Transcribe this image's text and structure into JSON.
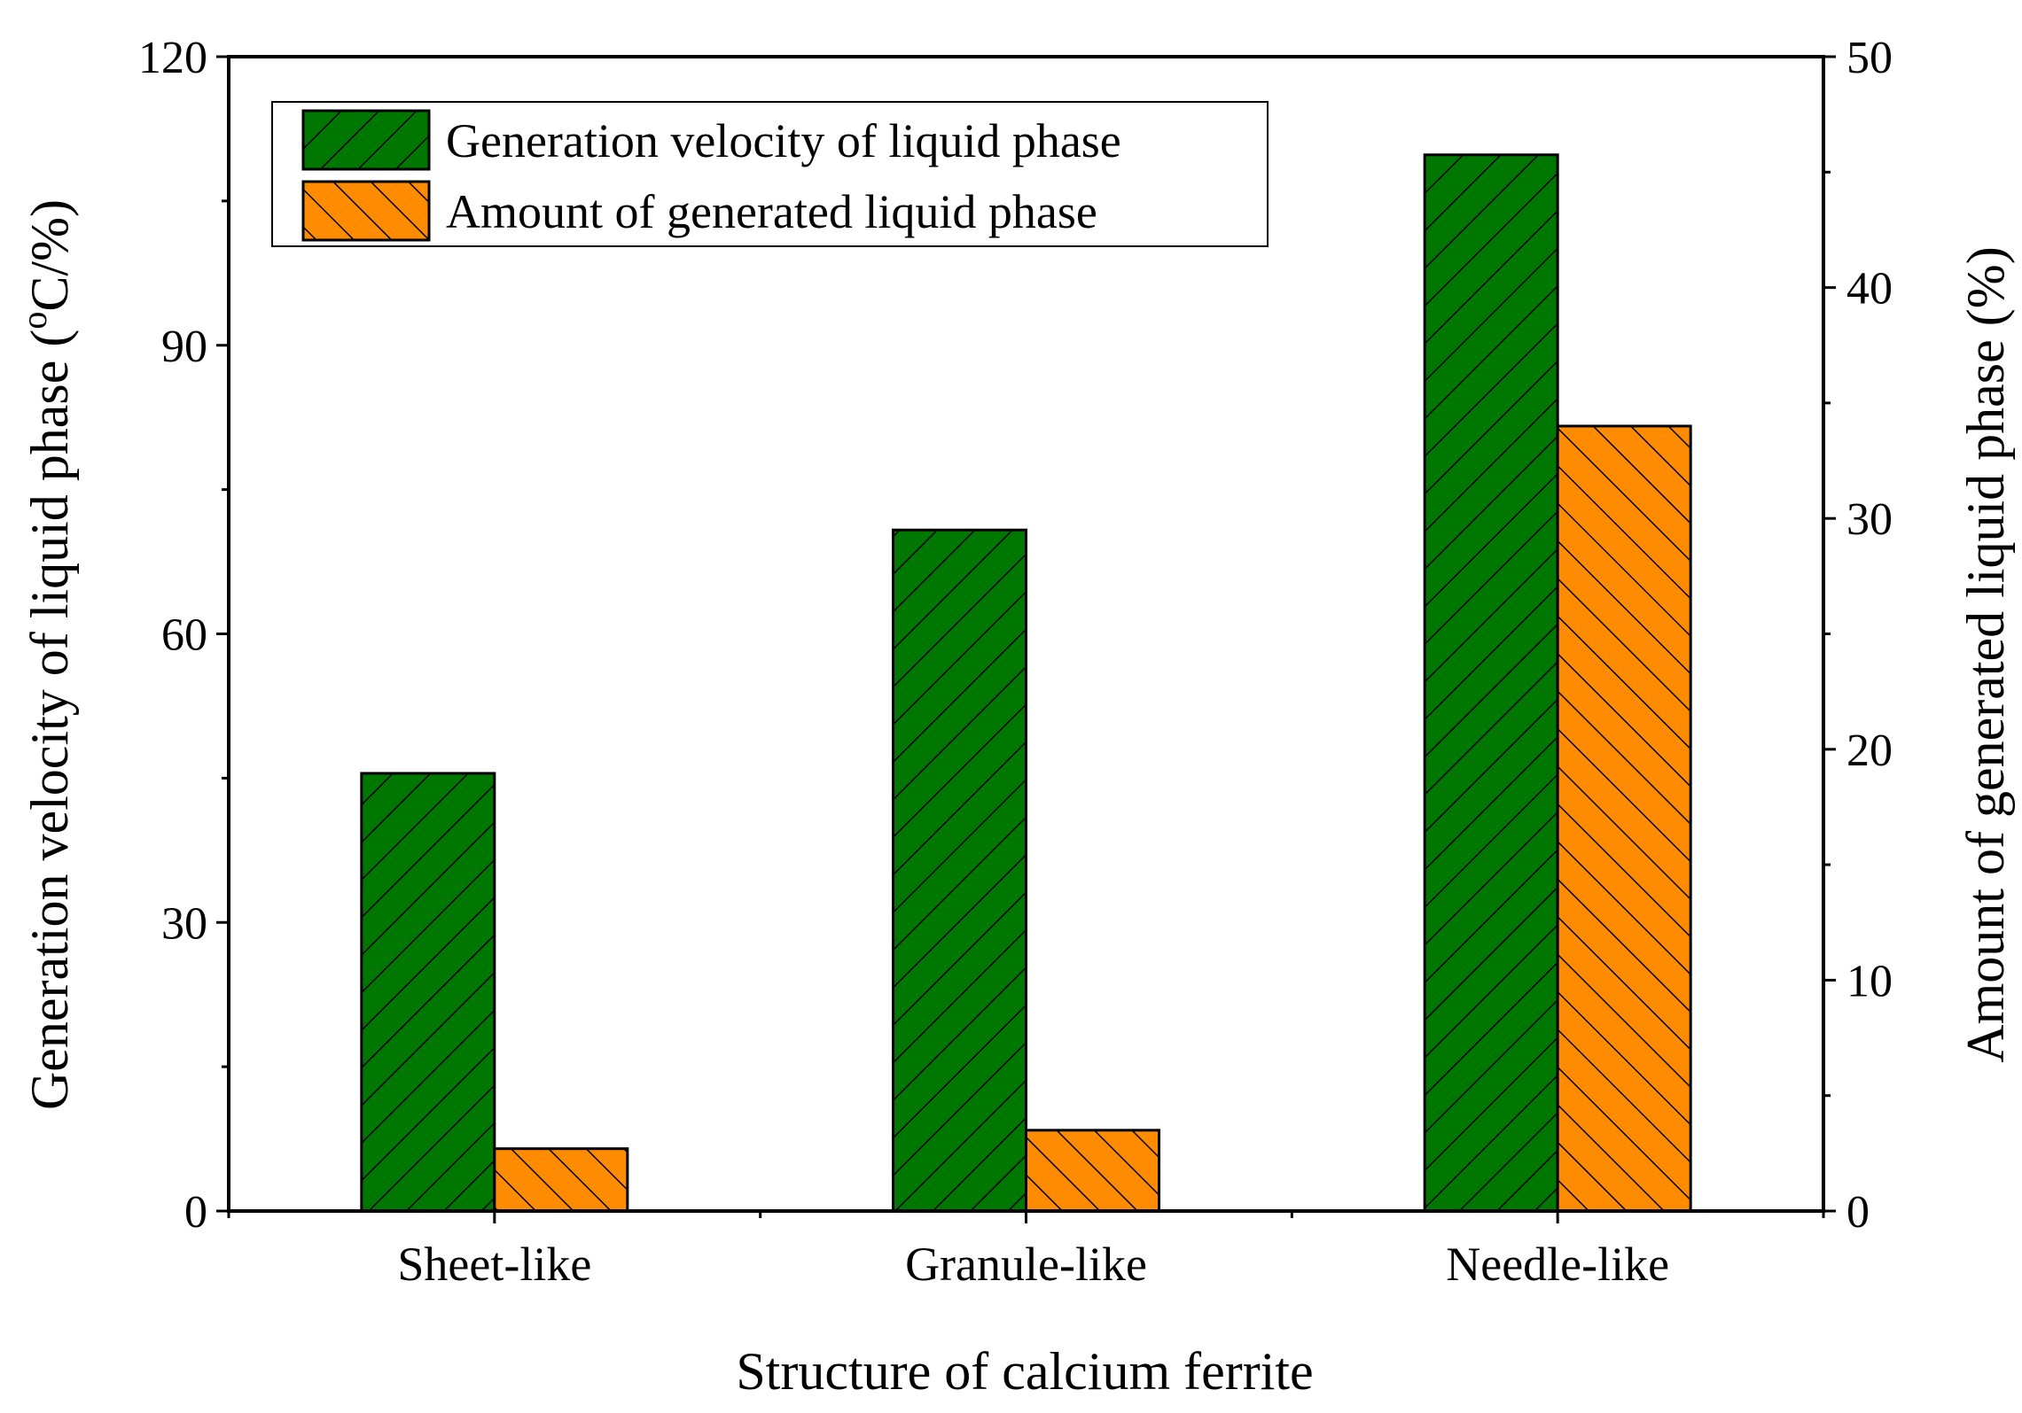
{
  "chart_data": {
    "type": "bar",
    "title": "",
    "xlabel": "Structure of calcium ferrite",
    "ylabel_left": "Generation velocity of liquid phase (",
    "ylabel_left_sup": "o",
    "ylabel_left_tail": "C/%)",
    "ylabel_right": "Amount  of generated liquid phase (%)",
    "categories": [
      "Sheet-like",
      "Granule-like",
      "Needle-like"
    ],
    "ylim_left": [
      0,
      120
    ],
    "ylim_right": [
      0,
      50
    ],
    "yticks_left": [
      "0",
      "30",
      "60",
      "90",
      "120"
    ],
    "yticks_right": [
      "0",
      "10",
      "20",
      "30",
      "40",
      "50"
    ],
    "series": [
      {
        "name": "Generation velocity of liquid phase",
        "axis": "left",
        "values": [
          45.5,
          70.8,
          109.8
        ],
        "color": "#007700",
        "hatch": "forward"
      },
      {
        "name": "Amount of generated liquid phase",
        "axis": "right",
        "values": [
          2.7,
          3.5,
          34.0
        ],
        "color": "#ff8c00",
        "hatch": "back"
      }
    ],
    "legend_position": "top-left",
    "grid": false
  }
}
